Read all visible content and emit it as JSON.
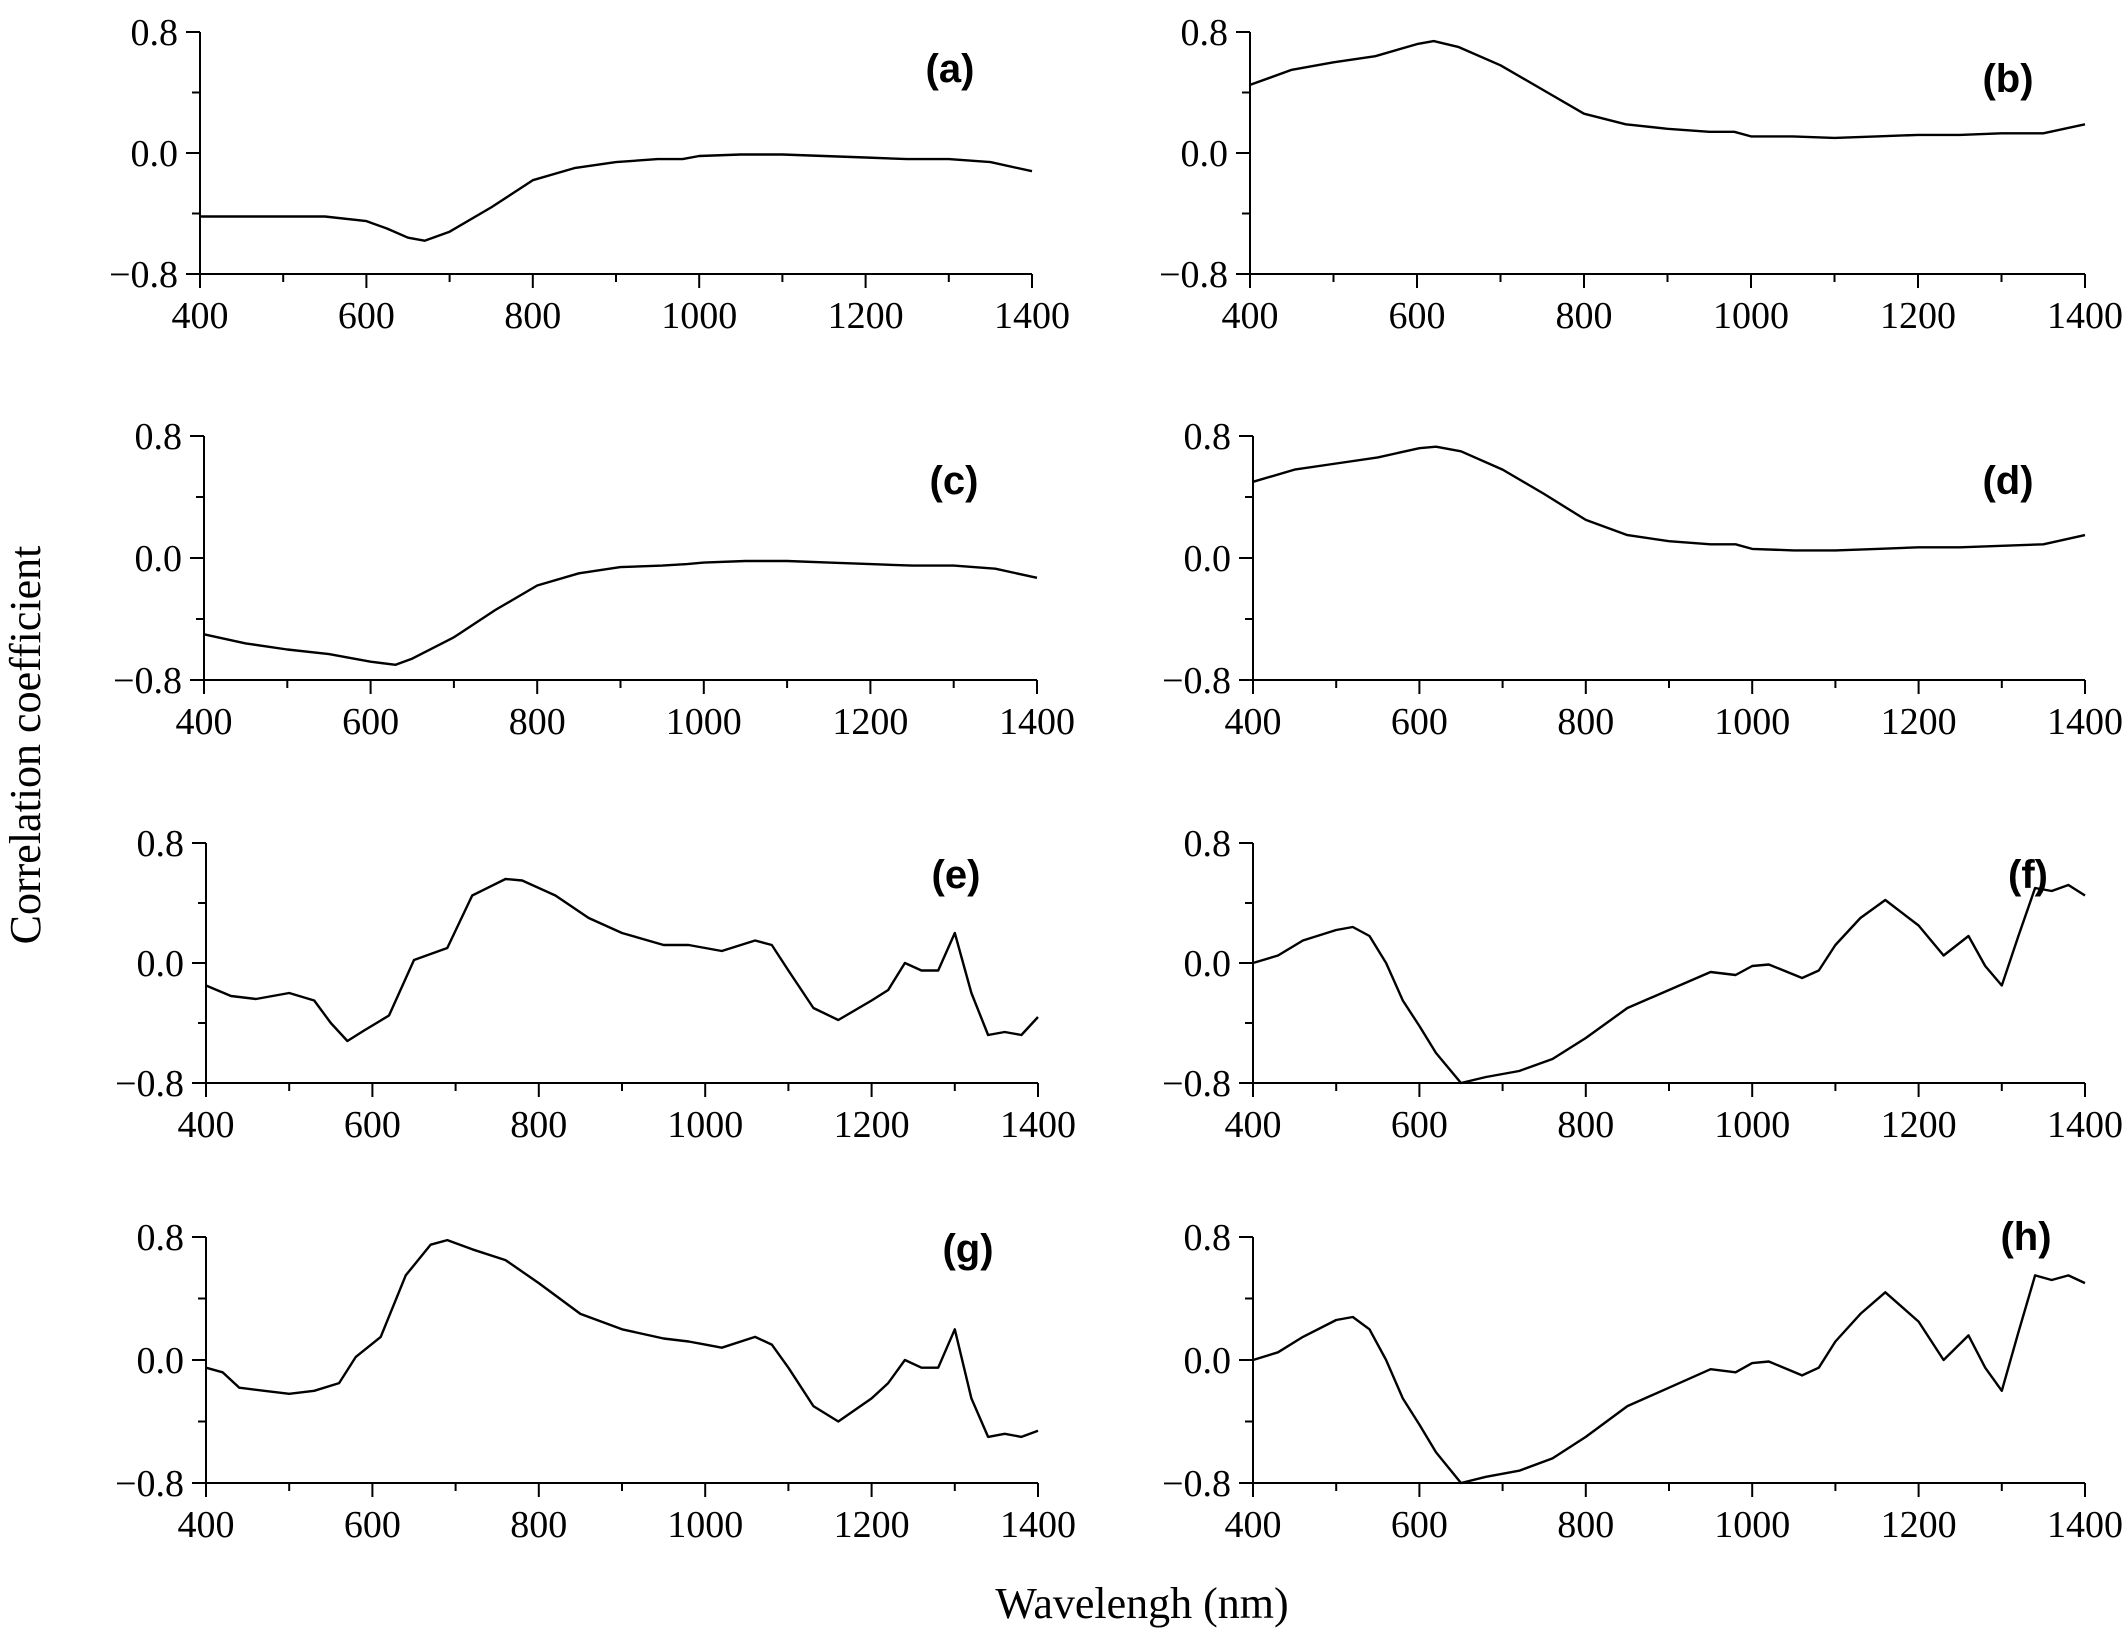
{
  "figure": {
    "ylabel": "Correlation coefficient",
    "xlabel": "Wavelengh (nm)"
  },
  "chart_data": [
    {
      "type": "line",
      "panel": "(a)",
      "xlim": [
        400,
        1400
      ],
      "ylim": [
        -0.8,
        0.8
      ],
      "xticks": [
        "400",
        "600",
        "800",
        "1000",
        "1200",
        "1400"
      ],
      "yticks": [
        "0.8",
        "0.0",
        "−0.8"
      ],
      "x": [
        400,
        450,
        500,
        550,
        600,
        625,
        650,
        670,
        700,
        750,
        800,
        850,
        900,
        950,
        980,
        1000,
        1050,
        1100,
        1150,
        1200,
        1250,
        1300,
        1350,
        1400
      ],
      "y": [
        -0.42,
        -0.42,
        -0.42,
        -0.42,
        -0.45,
        -0.5,
        -0.56,
        -0.58,
        -0.52,
        -0.36,
        -0.18,
        -0.1,
        -0.06,
        -0.04,
        -0.04,
        -0.02,
        -0.01,
        -0.01,
        -0.02,
        -0.03,
        -0.04,
        -0.04,
        -0.06,
        -0.12
      ]
    },
    {
      "type": "line",
      "panel": "(b)",
      "xlim": [
        400,
        1400
      ],
      "ylim": [
        -0.8,
        0.8
      ],
      "xticks": [
        "400",
        "600",
        "800",
        "1000",
        "1200",
        "1400"
      ],
      "yticks": [
        "0.8",
        "0.0",
        "−0.8"
      ],
      "x": [
        400,
        450,
        500,
        550,
        600,
        620,
        650,
        700,
        750,
        800,
        850,
        900,
        950,
        980,
        1000,
        1050,
        1100,
        1150,
        1200,
        1250,
        1300,
        1350,
        1400
      ],
      "y": [
        0.45,
        0.55,
        0.6,
        0.64,
        0.72,
        0.74,
        0.7,
        0.58,
        0.42,
        0.26,
        0.19,
        0.16,
        0.14,
        0.14,
        0.11,
        0.11,
        0.1,
        0.11,
        0.12,
        0.12,
        0.13,
        0.13,
        0.19
      ]
    },
    {
      "type": "line",
      "panel": "(c)",
      "xlim": [
        400,
        1400
      ],
      "ylim": [
        -0.8,
        0.8
      ],
      "xticks": [
        "400",
        "600",
        "800",
        "1000",
        "1200",
        "1400"
      ],
      "yticks": [
        "0.8",
        "0.0",
        "−0.8"
      ],
      "x": [
        400,
        450,
        500,
        550,
        600,
        630,
        650,
        700,
        750,
        800,
        850,
        900,
        950,
        980,
        1000,
        1050,
        1100,
        1150,
        1200,
        1250,
        1300,
        1350,
        1400
      ],
      "y": [
        -0.5,
        -0.56,
        -0.6,
        -0.63,
        -0.68,
        -0.7,
        -0.66,
        -0.52,
        -0.34,
        -0.18,
        -0.1,
        -0.06,
        -0.05,
        -0.04,
        -0.03,
        -0.02,
        -0.02,
        -0.03,
        -0.04,
        -0.05,
        -0.05,
        -0.07,
        -0.13
      ]
    },
    {
      "type": "line",
      "panel": "(d)",
      "xlim": [
        400,
        1400
      ],
      "ylim": [
        -0.8,
        0.8
      ],
      "xticks": [
        "400",
        "600",
        "800",
        "1000",
        "1200",
        "1400"
      ],
      "yticks": [
        "0.8",
        "0.0",
        "−0.8"
      ],
      "x": [
        400,
        450,
        500,
        550,
        600,
        620,
        650,
        700,
        750,
        800,
        850,
        900,
        950,
        980,
        1000,
        1050,
        1100,
        1150,
        1200,
        1250,
        1300,
        1350,
        1400
      ],
      "y": [
        0.5,
        0.58,
        0.62,
        0.66,
        0.72,
        0.73,
        0.7,
        0.58,
        0.42,
        0.25,
        0.15,
        0.11,
        0.09,
        0.09,
        0.06,
        0.05,
        0.05,
        0.06,
        0.07,
        0.07,
        0.08,
        0.09,
        0.15
      ]
    },
    {
      "type": "line",
      "panel": "(e)",
      "xlim": [
        400,
        1400
      ],
      "ylim": [
        -0.8,
        0.8
      ],
      "xticks": [
        "400",
        "600",
        "800",
        "1000",
        "1200",
        "1400"
      ],
      "yticks": [
        "0.8",
        "0.0",
        "−0.8"
      ],
      "x": [
        400,
        430,
        460,
        500,
        530,
        550,
        570,
        590,
        620,
        650,
        670,
        690,
        720,
        760,
        780,
        820,
        860,
        900,
        950,
        980,
        1000,
        1020,
        1060,
        1080,
        1100,
        1130,
        1160,
        1200,
        1220,
        1240,
        1260,
        1280,
        1300,
        1320,
        1340,
        1360,
        1380,
        1400
      ],
      "y": [
        -0.15,
        -0.22,
        -0.24,
        -0.2,
        -0.25,
        -0.4,
        -0.52,
        -0.45,
        -0.35,
        0.02,
        0.06,
        0.1,
        0.45,
        0.56,
        0.55,
        0.45,
        0.3,
        0.2,
        0.12,
        0.12,
        0.1,
        0.08,
        0.15,
        0.12,
        -0.05,
        -0.3,
        -0.38,
        -0.25,
        -0.18,
        0.0,
        -0.05,
        -0.05,
        0.2,
        -0.2,
        -0.48,
        -0.46,
        -0.48,
        -0.36
      ]
    },
    {
      "type": "line",
      "panel": "(f)",
      "xlim": [
        400,
        1400
      ],
      "ylim": [
        -0.8,
        0.8
      ],
      "xticks": [
        "400",
        "600",
        "800",
        "1000",
        "1200",
        "1400"
      ],
      "yticks": [
        "0.8",
        "0.0",
        "−0.8"
      ],
      "x": [
        400,
        430,
        460,
        500,
        520,
        540,
        560,
        580,
        600,
        620,
        650,
        680,
        720,
        760,
        800,
        850,
        900,
        950,
        980,
        1000,
        1020,
        1060,
        1080,
        1100,
        1130,
        1160,
        1200,
        1230,
        1260,
        1280,
        1300,
        1320,
        1340,
        1360,
        1380,
        1400
      ],
      "y": [
        0.0,
        0.05,
        0.15,
        0.22,
        0.24,
        0.18,
        0.0,
        -0.25,
        -0.42,
        -0.6,
        -0.8,
        -0.76,
        -0.72,
        -0.64,
        -0.5,
        -0.3,
        -0.18,
        -0.06,
        -0.08,
        -0.02,
        -0.01,
        -0.1,
        -0.05,
        0.12,
        0.3,
        0.42,
        0.25,
        0.05,
        0.18,
        -0.02,
        -0.15,
        0.18,
        0.5,
        0.48,
        0.52,
        0.45
      ]
    },
    {
      "type": "line",
      "panel": "(g)",
      "xlim": [
        400,
        1400
      ],
      "ylim": [
        -0.8,
        0.8
      ],
      "xticks": [
        "400",
        "600",
        "800",
        "1000",
        "1200",
        "1400"
      ],
      "yticks": [
        "0.8",
        "0.0",
        "−0.8"
      ],
      "x": [
        400,
        420,
        440,
        470,
        500,
        530,
        560,
        580,
        610,
        640,
        670,
        690,
        720,
        760,
        800,
        850,
        900,
        950,
        980,
        1000,
        1020,
        1060,
        1080,
        1100,
        1130,
        1160,
        1200,
        1220,
        1240,
        1260,
        1280,
        1300,
        1320,
        1340,
        1360,
        1380,
        1400
      ],
      "y": [
        -0.05,
        -0.08,
        -0.18,
        -0.2,
        -0.22,
        -0.2,
        -0.15,
        0.02,
        0.15,
        0.55,
        0.75,
        0.78,
        0.72,
        0.65,
        0.5,
        0.3,
        0.2,
        0.14,
        0.12,
        0.1,
        0.08,
        0.15,
        0.1,
        -0.05,
        -0.3,
        -0.4,
        -0.25,
        -0.15,
        0.0,
        -0.05,
        -0.05,
        0.2,
        -0.25,
        -0.5,
        -0.48,
        -0.5,
        -0.46
      ]
    },
    {
      "type": "line",
      "panel": "(h)",
      "xlim": [
        400,
        1400
      ],
      "ylim": [
        -0.8,
        0.8
      ],
      "xticks": [
        "400",
        "600",
        "800",
        "1000",
        "1200",
        "1400"
      ],
      "yticks": [
        "0.8",
        "0.0",
        "−0.8"
      ],
      "x": [
        400,
        430,
        460,
        500,
        520,
        540,
        560,
        580,
        600,
        620,
        650,
        680,
        720,
        760,
        800,
        850,
        900,
        950,
        980,
        1000,
        1020,
        1060,
        1080,
        1100,
        1130,
        1160,
        1200,
        1230,
        1260,
        1280,
        1300,
        1320,
        1340,
        1360,
        1380,
        1400
      ],
      "y": [
        0.0,
        0.05,
        0.15,
        0.26,
        0.28,
        0.2,
        0.0,
        -0.25,
        -0.42,
        -0.6,
        -0.8,
        -0.76,
        -0.72,
        -0.64,
        -0.5,
        -0.3,
        -0.18,
        -0.06,
        -0.08,
        -0.02,
        -0.01,
        -0.1,
        -0.05,
        0.12,
        0.3,
        0.44,
        0.25,
        0.0,
        0.16,
        -0.05,
        -0.2,
        0.18,
        0.55,
        0.52,
        0.55,
        0.5
      ]
    }
  ]
}
